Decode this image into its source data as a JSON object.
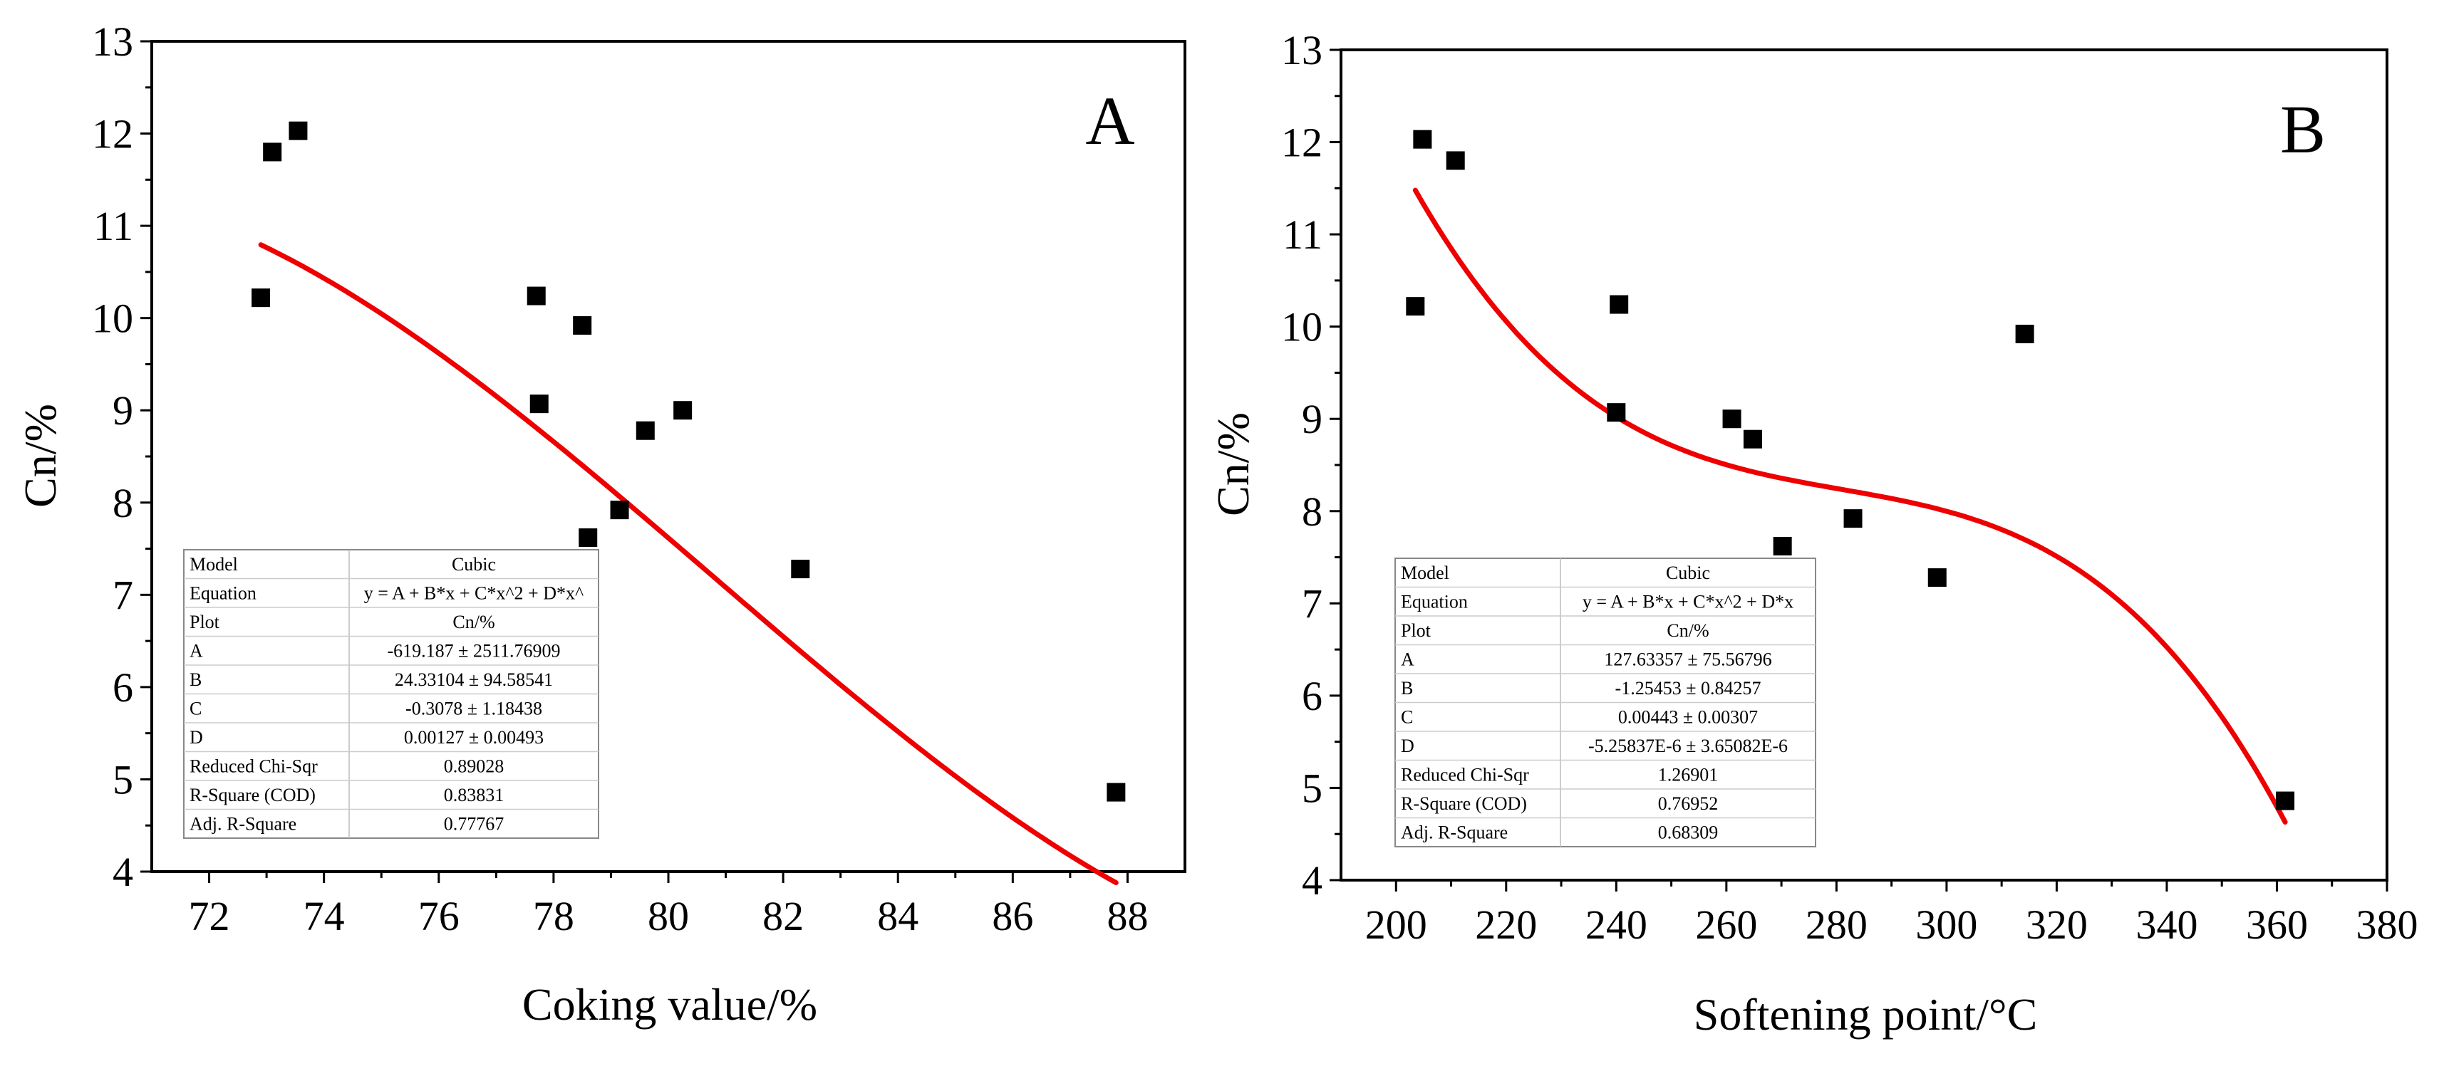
{
  "figure": {
    "background": "#ffffff",
    "marker_color": "#000000",
    "fit_color": "#ee0000"
  },
  "chart_data": [
    {
      "type": "scatter",
      "panel_label": "A",
      "xlabel": "Coking value/%",
      "ylabel": "Cn/%",
      "xlim": [
        71,
        89
      ],
      "ylim": [
        4,
        13
      ],
      "xticks": [
        72,
        74,
        76,
        78,
        80,
        82,
        84,
        86,
        88
      ],
      "yticks": [
        4,
        5,
        6,
        7,
        8,
        9,
        10,
        11,
        12,
        13
      ],
      "xtick_labels": [
        "72",
        "74",
        "76",
        "78",
        "80",
        "82",
        "84",
        "86",
        "88"
      ],
      "ytick_labels": [
        "4",
        "5",
        "6",
        "7",
        "8",
        "9",
        "10",
        "11",
        "12",
        "13"
      ],
      "grid": false,
      "points": [
        {
          "x": 72.9,
          "y": 10.22
        },
        {
          "x": 73.1,
          "y": 11.8
        },
        {
          "x": 73.55,
          "y": 12.03
        },
        {
          "x": 77.7,
          "y": 10.24
        },
        {
          "x": 77.75,
          "y": 9.07
        },
        {
          "x": 78.5,
          "y": 9.92
        },
        {
          "x": 78.6,
          "y": 7.62
        },
        {
          "x": 79.15,
          "y": 7.92
        },
        {
          "x": 79.6,
          "y": 8.78
        },
        {
          "x": 80.25,
          "y": 9.0
        },
        {
          "x": 82.3,
          "y": 7.28
        },
        {
          "x": 87.8,
          "y": 4.86
        }
      ],
      "fit": {
        "model": "cubic",
        "A": -619.187,
        "B": 24.33104,
        "C": -0.3078,
        "D": 0.00127,
        "x_range": [
          72.9,
          87.8
        ]
      },
      "stats_table": [
        [
          "Model",
          "Cubic"
        ],
        [
          "Equation",
          "y = A + B*x + C*x^2 + D*x^"
        ],
        [
          "Plot",
          "Cn/%"
        ],
        [
          "A",
          "-619.187 ± 2511.76909"
        ],
        [
          "B",
          "24.33104 ± 94.58541"
        ],
        [
          "C",
          "-0.3078 ± 1.18438"
        ],
        [
          "D",
          "0.00127 ± 0.00493"
        ],
        [
          "Reduced Chi-Sqr",
          "0.89028"
        ],
        [
          "R-Square (COD)",
          "0.83831"
        ],
        [
          "Adj. R-Square",
          "0.77767"
        ]
      ]
    },
    {
      "type": "scatter",
      "panel_label": "B",
      "xlabel": "Softening point/°C",
      "ylabel": "Cn/%",
      "xlim": [
        190,
        380
      ],
      "ylim": [
        4,
        13
      ],
      "xticks": [
        200,
        220,
        240,
        260,
        280,
        300,
        320,
        340,
        360,
        380
      ],
      "yticks": [
        4,
        5,
        6,
        7,
        8,
        9,
        10,
        11,
        12,
        13
      ],
      "xtick_labels": [
        "200",
        "220",
        "240",
        "260",
        "280",
        "300",
        "320",
        "340",
        "360",
        "380"
      ],
      "ytick_labels": [
        "4",
        "5",
        "6",
        "7",
        "8",
        "9",
        "10",
        "11",
        "12",
        "13"
      ],
      "grid": false,
      "points": [
        {
          "x": 203.5,
          "y": 10.22
        },
        {
          "x": 204.8,
          "y": 12.03
        },
        {
          "x": 210.8,
          "y": 11.8
        },
        {
          "x": 240.0,
          "y": 9.07
        },
        {
          "x": 240.5,
          "y": 10.24
        },
        {
          "x": 261.0,
          "y": 9.0
        },
        {
          "x": 264.8,
          "y": 8.78
        },
        {
          "x": 270.2,
          "y": 7.62
        },
        {
          "x": 283.0,
          "y": 7.92
        },
        {
          "x": 298.3,
          "y": 7.28
        },
        {
          "x": 314.2,
          "y": 9.92
        },
        {
          "x": 361.5,
          "y": 4.86
        }
      ],
      "fit": {
        "model": "cubic",
        "A": 127.63357,
        "B": -1.25453,
        "C": 0.00443,
        "D": -5.25837e-06,
        "x_range": [
          203.5,
          361.5
        ]
      },
      "stats_table": [
        [
          "Model",
          "Cubic"
        ],
        [
          "Equation",
          "y = A + B*x + C*x^2 + D*x"
        ],
        [
          "Plot",
          "Cn/%"
        ],
        [
          "A",
          "127.63357 ± 75.56796"
        ],
        [
          "B",
          "-1.25453 ± 0.84257"
        ],
        [
          "C",
          "0.00443 ± 0.00307"
        ],
        [
          "D",
          "-5.25837E-6 ± 3.65082E-6"
        ],
        [
          "Reduced Chi-Sqr",
          "1.26901"
        ],
        [
          "R-Square (COD)",
          "0.76952"
        ],
        [
          "Adj. R-Square",
          "0.68309"
        ]
      ]
    }
  ]
}
